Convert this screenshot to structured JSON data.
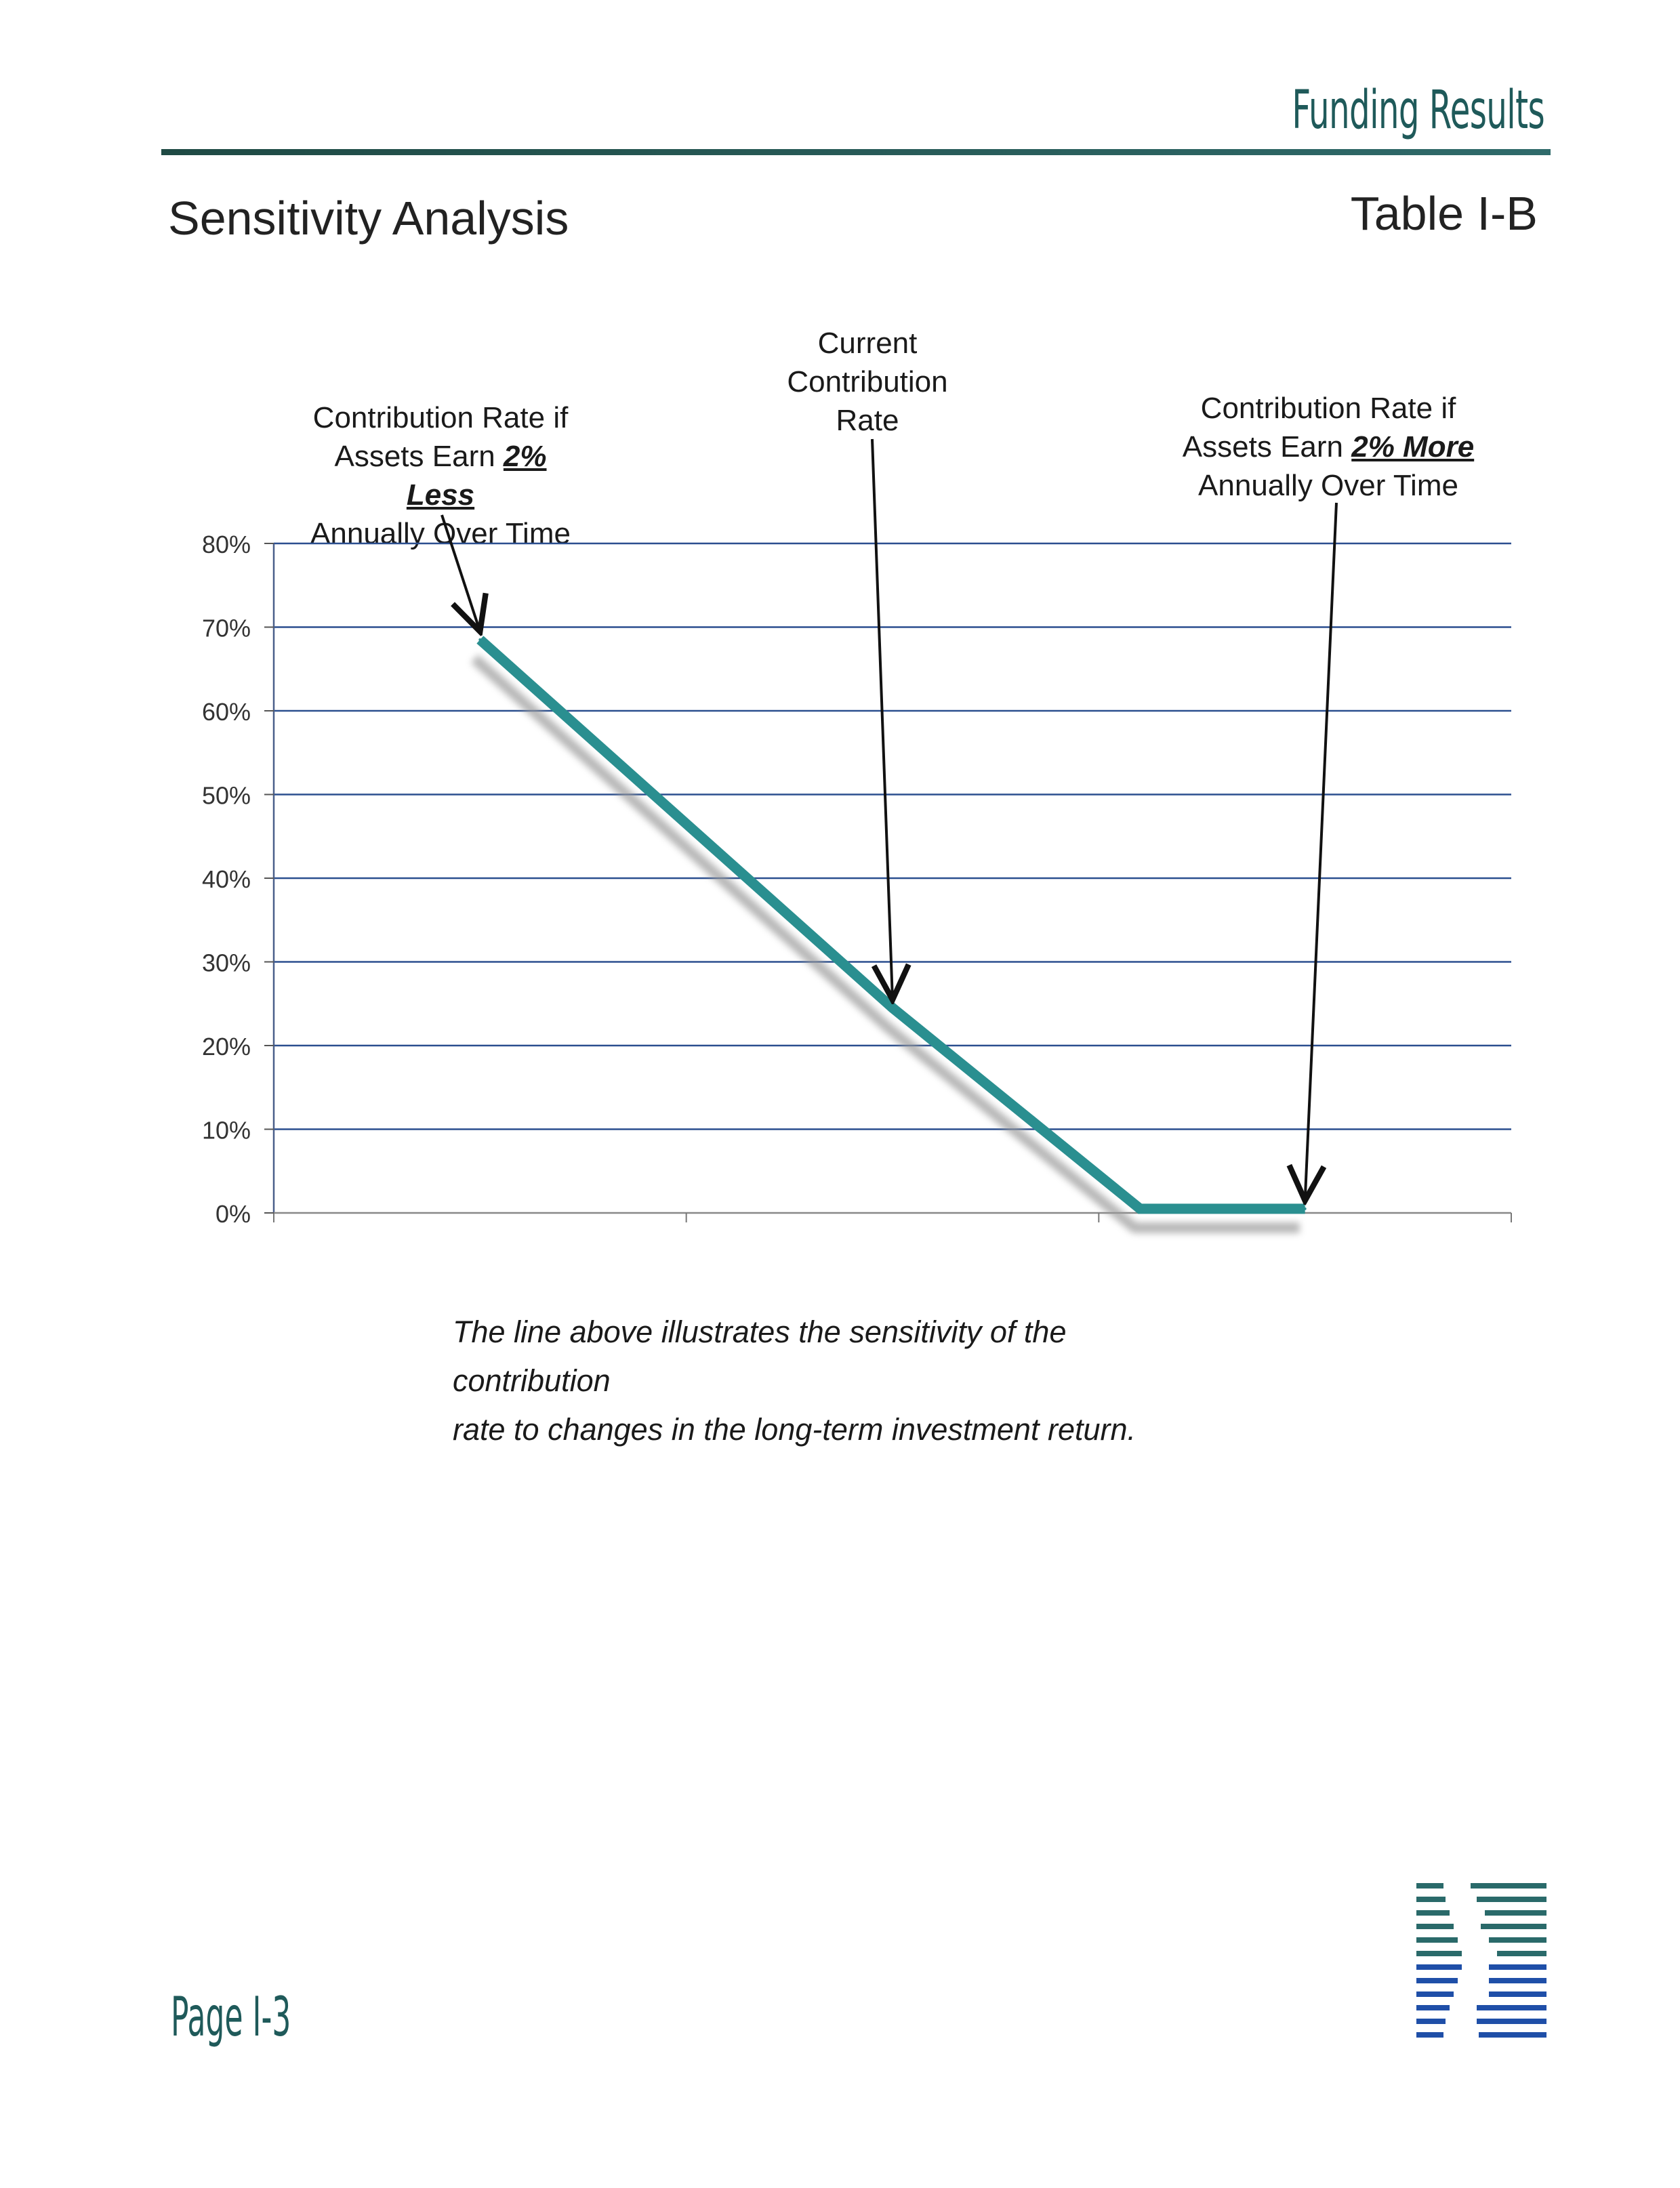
{
  "header": {
    "section": "Funding Results",
    "title": "Sensitivity Analysis",
    "table_id": "Table I-B"
  },
  "callouts": {
    "less": {
      "line1": "Contribution Rate if",
      "line2_prefix": "Assets Earn ",
      "line2_em": "2% Less",
      "line3": "Annually Over Time"
    },
    "current": {
      "line1": "Current",
      "line2": "Contribution",
      "line3": "Rate"
    },
    "more": {
      "line1": "Contribution Rate if",
      "line2_prefix": "Assets Earn ",
      "line2_em": "2% More",
      "line3": "Annually Over Time"
    }
  },
  "caption": {
    "line1": "The line above illustrates the sensitivity of the contribution",
    "line2": "rate to changes in the long-term investment return."
  },
  "footer": {
    "page": "Page I-3"
  },
  "colors": {
    "line": "#2a8f90",
    "grid": "#2b4f8f",
    "brand": "#1f5a5a",
    "logo_blue": "#1f4fa8"
  },
  "chart_data": {
    "type": "line",
    "title": "",
    "xlabel": "",
    "ylabel": "",
    "ylim": [
      0,
      80
    ],
    "yticks": [
      "0%",
      "10%",
      "20%",
      "30%",
      "40%",
      "50%",
      "60%",
      "70%",
      "80%"
    ],
    "ytick_values": [
      0,
      10,
      20,
      30,
      40,
      50,
      60,
      70,
      80
    ],
    "grid": true,
    "x": [
      0.5,
      1.5,
      2.1,
      2.5
    ],
    "series": [
      {
        "values": [
          68.5,
          24.5,
          0.5,
          0.5
        ]
      }
    ],
    "xlim": [
      0,
      3
    ],
    "x_ticks": [
      0,
      1,
      2,
      3
    ],
    "annotations": [
      {
        "target": "less",
        "x": 0.5,
        "y": 68.5
      },
      {
        "target": "current",
        "x": 1.5,
        "y": 24.5
      },
      {
        "target": "more",
        "x": 2.5,
        "y": 0.5
      }
    ]
  }
}
